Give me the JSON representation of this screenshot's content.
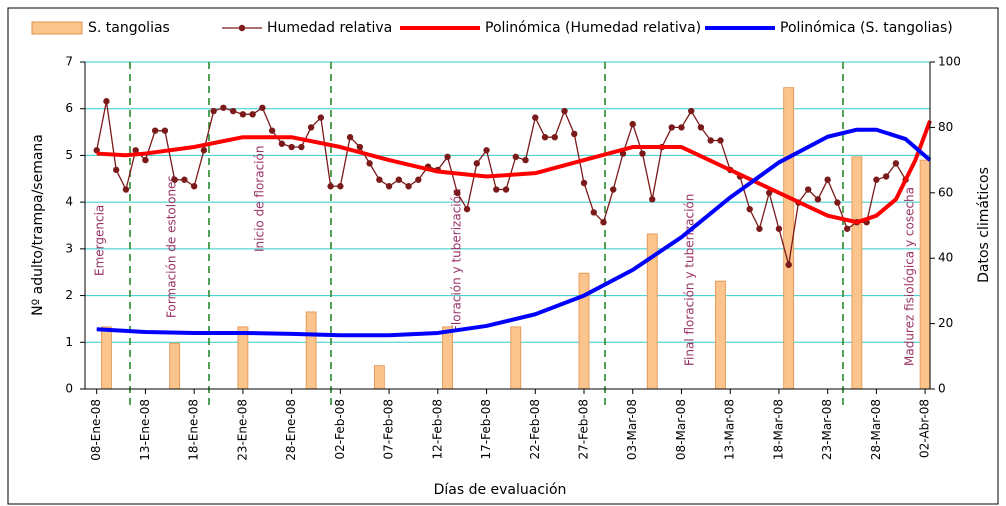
{
  "chart_data": {
    "type": "combo",
    "y_label": "Nº adulto/trampa/semana",
    "y2_label": "Datos climáticos",
    "x_label": "Días de evaluación",
    "xlim": [
      -1.2,
      85.5
    ],
    "xticks": [
      {
        "value": 0,
        "label": "08-Ene-08"
      },
      {
        "value": 5,
        "label": "13-Ene-08"
      },
      {
        "value": 10,
        "label": "18-Ene-08"
      },
      {
        "value": 15,
        "label": "23-Ene-08"
      },
      {
        "value": 20,
        "label": "28-Ene-08"
      },
      {
        "value": 25,
        "label": "02-Feb-08"
      },
      {
        "value": 30,
        "label": "07-Feb-08"
      },
      {
        "value": 35,
        "label": "12-Feb-08"
      },
      {
        "value": 40,
        "label": "17-Feb-08"
      },
      {
        "value": 45,
        "label": "22-Feb-08"
      },
      {
        "value": 50,
        "label": "27-Feb-08"
      },
      {
        "value": 55,
        "label": "03-Mar-08"
      },
      {
        "value": 60,
        "label": "08-Mar-08"
      },
      {
        "value": 65,
        "label": "13-Mar-08"
      },
      {
        "value": 70,
        "label": "18-Mar-08"
      },
      {
        "value": 75,
        "label": "23-Mar-08"
      },
      {
        "value": 80,
        "label": "28-Mar-08"
      },
      {
        "value": 85,
        "label": "02-Abr-08"
      }
    ],
    "ylim": [
      0,
      7
    ],
    "yticks": [
      0,
      1,
      2,
      3,
      4,
      5,
      6,
      7
    ],
    "y2lim": [
      0,
      100
    ],
    "y2ticks": [
      0,
      20,
      40,
      60,
      80,
      100
    ],
    "grid": true,
    "annotations": [
      "Emergencia",
      "Formación de estolones",
      "Inicio de floración",
      "Floración y tuberización",
      "Final floración y tuberización",
      "Madurez fisiológica y cosecha"
    ],
    "series": [
      {
        "name": "S. tangolias",
        "type": "bar",
        "color": "#fbc48d",
        "x": [
          1,
          8,
          15,
          22,
          29,
          36,
          43,
          50,
          57,
          64,
          71,
          78,
          85
        ],
        "values": [
          1.33,
          0.98,
          1.33,
          1.65,
          0.5,
          1.33,
          1.33,
          2.48,
          3.32,
          2.31,
          6.45,
          4.97,
          4.9
        ]
      },
      {
        "name": "Humedad relativa",
        "type": "line-marker",
        "axis": "y2",
        "color": "#7b1a1a",
        "x": [
          0,
          1,
          2,
          3,
          4,
          5,
          6,
          7,
          8,
          9,
          10,
          11,
          12,
          13,
          14,
          15,
          16,
          17,
          18,
          19,
          20,
          21,
          22,
          23,
          24,
          25,
          26,
          27,
          28,
          29,
          30,
          31,
          32,
          33,
          34,
          35,
          36,
          37,
          38,
          39,
          40,
          41,
          42,
          43,
          44,
          45,
          46,
          47,
          48,
          49,
          50,
          51,
          52,
          53,
          54,
          55,
          56,
          57,
          58,
          59,
          60,
          61,
          62,
          63,
          64,
          65,
          66,
          67,
          68,
          69,
          70,
          71,
          72,
          73,
          74,
          75,
          76,
          77,
          78,
          79,
          80,
          81,
          82,
          83
        ],
        "values": [
          73,
          88,
          67,
          61,
          73,
          70,
          79,
          79,
          64,
          64,
          62,
          73,
          85,
          86,
          85,
          84,
          84,
          86,
          79,
          75,
          74,
          74,
          80,
          83,
          62,
          62,
          77,
          74,
          69,
          64,
          62,
          64,
          62,
          64,
          68,
          67,
          71,
          60,
          55,
          69,
          73,
          61,
          61,
          71,
          70,
          83,
          77,
          77,
          85,
          78,
          63,
          54,
          51,
          61,
          72,
          81,
          72,
          58,
          74,
          80,
          80,
          85,
          80,
          76,
          76,
          67,
          65,
          55,
          49,
          60,
          49,
          38,
          57,
          61,
          58,
          64,
          57,
          49,
          51,
          51,
          64,
          65,
          69,
          64
        ]
      },
      {
        "name": "Polinómica (Humedad relativa)",
        "type": "line",
        "axis": "y2",
        "color": "#ff0000",
        "x": [
          0,
          3,
          5,
          10,
          15,
          20,
          25,
          30,
          35,
          40,
          45,
          50,
          55,
          60,
          65,
          70,
          75,
          78,
          80,
          82,
          84,
          85.5
        ],
        "values": [
          72,
          71.5,
          72,
          74,
          77,
          77,
          74,
          70,
          66.5,
          65,
          66,
          70,
          74,
          74,
          67,
          60,
          53,
          51,
          53,
          58,
          70,
          82
        ]
      },
      {
        "name": "Polinómica (S. tangolias)",
        "type": "line",
        "color": "#0000ff",
        "x": [
          0,
          5,
          10,
          15,
          20,
          25,
          30,
          35,
          40,
          45,
          50,
          55,
          60,
          65,
          70,
          75,
          78,
          80,
          83,
          85.5
        ],
        "values": [
          1.28,
          1.22,
          1.2,
          1.2,
          1.18,
          1.15,
          1.15,
          1.2,
          1.35,
          1.6,
          2.0,
          2.55,
          3.25,
          4.1,
          4.85,
          5.4,
          5.55,
          5.55,
          5.35,
          4.9
        ]
      }
    ]
  }
}
